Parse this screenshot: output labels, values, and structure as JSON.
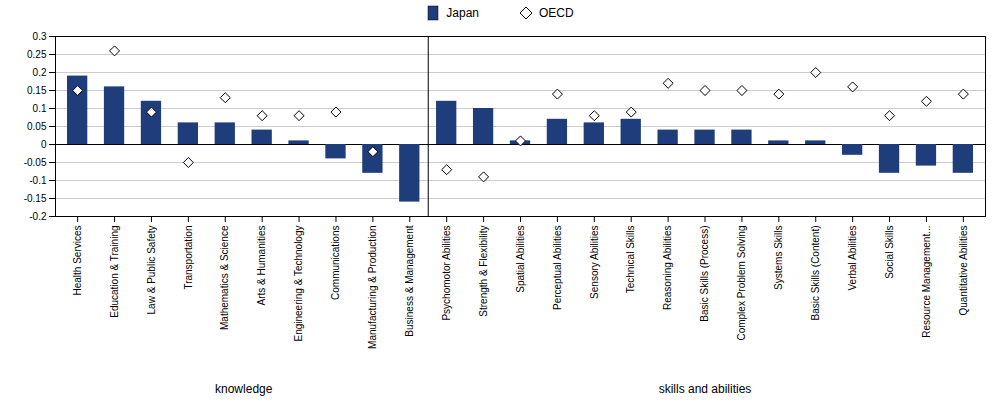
{
  "chart_data": {
    "type": "bar",
    "categories": [
      "Health Services",
      "Education & Training",
      "Law & Public Safety",
      "Transportation",
      "Mathematics & Science",
      "Arts & Humanities",
      "Engineering & Technology",
      "Communications",
      "Manufacturing & Production",
      "Business & Management",
      "Psychomotor Abilities",
      "Strength & Flexibility",
      "Spatial Abilities",
      "Perceptual Abilities",
      "Sensory Abilities",
      "Technical Skills",
      "Reasoning Abilities",
      "Basic Skills (Process)",
      "Complex Problem Solving",
      "Systems Skills",
      "Basic Skills (Content)",
      "Verbal Abilities",
      "Social Skills",
      "Resource Management...",
      "Quantitative Abilities"
    ],
    "series": [
      {
        "name": "Japan",
        "type": "bar",
        "color": "#1f3d7a",
        "values": [
          0.19,
          0.16,
          0.12,
          0.06,
          0.06,
          0.04,
          0.01,
          -0.04,
          -0.08,
          -0.16,
          0.12,
          0.1,
          0.01,
          0.07,
          0.06,
          0.07,
          0.04,
          0.04,
          0.04,
          0.01,
          0.01,
          -0.03,
          -0.08,
          -0.06,
          -0.08
        ]
      },
      {
        "name": "OECD",
        "type": "scatter",
        "marker": "diamond",
        "color": "#ffffff",
        "values": [
          0.15,
          0.26,
          0.09,
          -0.05,
          0.13,
          0.08,
          0.08,
          0.09,
          -0.02,
          null,
          -0.07,
          -0.09,
          0.01,
          0.14,
          0.08,
          0.09,
          0.17,
          0.15,
          0.15,
          0.14,
          0.2,
          0.16,
          0.08,
          0.12,
          0.14
        ]
      }
    ],
    "ylim": [
      -0.2,
      0.3
    ],
    "yticks": [
      -0.2,
      -0.15,
      -0.1,
      -0.05,
      0,
      0.05,
      0.1,
      0.15,
      0.2,
      0.25,
      0.3
    ],
    "grid": true,
    "legend": "top",
    "annotations": [
      {
        "text": "knowledge",
        "from": "Health Services",
        "to": "Business & Management"
      },
      {
        "text": "skills and abilities",
        "from": "Psychomotor Abilities",
        "to": "Quantitative Abilities"
      }
    ]
  }
}
